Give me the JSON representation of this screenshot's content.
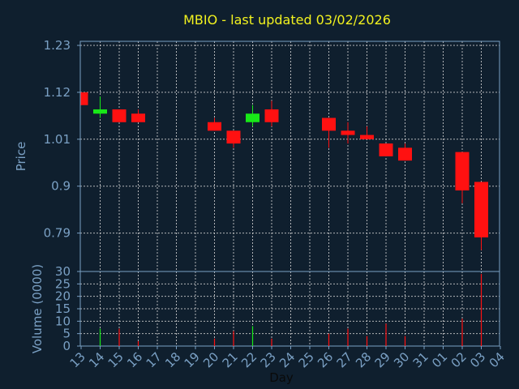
{
  "colors": {
    "background": "#0f1f2e",
    "frame": "#7aa0c4",
    "grid": "#d0d0d0",
    "title": "#f2f21f",
    "up": "#18e818",
    "down": "#ff1111"
  },
  "chart_data": [
    {
      "type": "candlestick",
      "title": "MBIO - last updated 03/02/2026",
      "ylabel": "Price",
      "ylim": [
        0.7,
        1.23
      ],
      "y_ticks": [
        "1.23",
        "1.12",
        "1.01",
        "0.9",
        "0.79"
      ],
      "y_tick_values": [
        1.23,
        1.12,
        1.01,
        0.9,
        0.79
      ],
      "grid": true,
      "x_labels": [
        "13",
        "14",
        "15",
        "16",
        "17",
        "18",
        "19",
        "20",
        "21",
        "22",
        "23",
        "24",
        "25",
        "26",
        "27",
        "28",
        "29",
        "30",
        "31",
        "01",
        "02",
        "03",
        "04"
      ],
      "candles": [
        {
          "day": "13",
          "open": 1.12,
          "high": 1.12,
          "low": 1.09,
          "close": 1.09
        },
        {
          "day": "14",
          "open": 1.07,
          "high": 1.11,
          "low": 1.06,
          "close": 1.08
        },
        {
          "day": "15",
          "open": 1.08,
          "high": 1.08,
          "low": 1.05,
          "close": 1.05
        },
        {
          "day": "16",
          "open": 1.07,
          "high": 1.08,
          "low": 1.05,
          "close": 1.05
        },
        {
          "day": "20",
          "open": 1.05,
          "high": 1.06,
          "low": 1.03,
          "close": 1.03
        },
        {
          "day": "21",
          "open": 1.03,
          "high": 1.03,
          "low": 0.99,
          "close": 1.0
        },
        {
          "day": "22",
          "open": 1.05,
          "high": 1.09,
          "low": 1.04,
          "close": 1.07
        },
        {
          "day": "23",
          "open": 1.08,
          "high": 1.1,
          "low": 1.04,
          "close": 1.05
        },
        {
          "day": "26",
          "open": 1.06,
          "high": 1.06,
          "low": 0.99,
          "close": 1.03
        },
        {
          "day": "27",
          "open": 1.03,
          "high": 1.05,
          "low": 1.0,
          "close": 1.02
        },
        {
          "day": "28",
          "open": 1.02,
          "high": 1.04,
          "low": 1.01,
          "close": 1.01
        },
        {
          "day": "29",
          "open": 1.0,
          "high": 1.0,
          "low": 0.97,
          "close": 0.97
        },
        {
          "day": "30",
          "open": 0.99,
          "high": 1.0,
          "low": 0.96,
          "close": 0.96
        },
        {
          "day": "02",
          "open": 0.98,
          "high": 0.98,
          "low": 0.86,
          "close": 0.89
        },
        {
          "day": "03",
          "open": 0.91,
          "high": 0.91,
          "low": 0.75,
          "close": 0.78
        }
      ]
    },
    {
      "type": "bar",
      "ylabel": "Volume (0000)",
      "xlabel": "Day",
      "ylim": [
        0,
        30
      ],
      "y_ticks": [
        "30",
        "25",
        "20",
        "15",
        "10",
        "5",
        "0"
      ],
      "y_tick_values": [
        30,
        25,
        20,
        15,
        10,
        5,
        0
      ],
      "grid": true,
      "x_labels": [
        "13",
        "14",
        "15",
        "16",
        "17",
        "18",
        "19",
        "20",
        "21",
        "22",
        "23",
        "24",
        "25",
        "26",
        "27",
        "28",
        "29",
        "30",
        "31",
        "01",
        "02",
        "03",
        "04"
      ],
      "bars": [
        {
          "day": "13",
          "value": 0
        },
        {
          "day": "14",
          "value": 7
        },
        {
          "day": "15",
          "value": 7
        },
        {
          "day": "16",
          "value": 2
        },
        {
          "day": "20",
          "value": 3
        },
        {
          "day": "21",
          "value": 6
        },
        {
          "day": "22",
          "value": 8
        },
        {
          "day": "23",
          "value": 3
        },
        {
          "day": "26",
          "value": 5
        },
        {
          "day": "27",
          "value": 7
        },
        {
          "day": "28",
          "value": 4
        },
        {
          "day": "29",
          "value": 9
        },
        {
          "day": "30",
          "value": 4
        },
        {
          "day": "02",
          "value": 11
        },
        {
          "day": "03",
          "value": 29
        }
      ]
    }
  ]
}
